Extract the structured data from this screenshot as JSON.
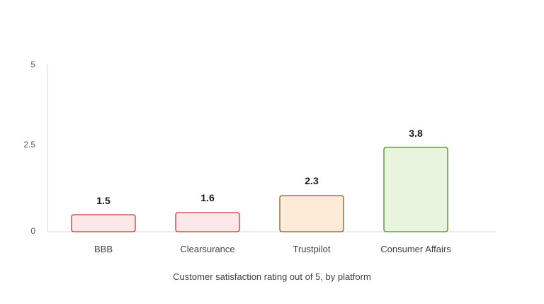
{
  "chart_data": {
    "type": "bar",
    "categories": [
      "BBB",
      "Clearsurance",
      "Trustpilot",
      "Consumer Affairs"
    ],
    "values": [
      1.5,
      1.6,
      2.3,
      3.8
    ],
    "value_labels": [
      "1.5",
      "1.6",
      "2.3",
      "3.8"
    ],
    "y_ticks": [
      "0",
      "2.5",
      "5"
    ],
    "xlabel": "Customer satisfaction rating out of 5, by platform",
    "ylabel": "",
    "title": "",
    "ylim": [
      0,
      5
    ],
    "grid": false,
    "legend": "none",
    "colors": {
      "fills": [
        "#fce8e8",
        "#fce8e8",
        "#fbebd7",
        "#e9f4df"
      ],
      "strokes": [
        "#c0393b",
        "#c0393b",
        "#8a5a1e",
        "#4f8a2b"
      ],
      "axis": "#d9d9d9"
    }
  }
}
